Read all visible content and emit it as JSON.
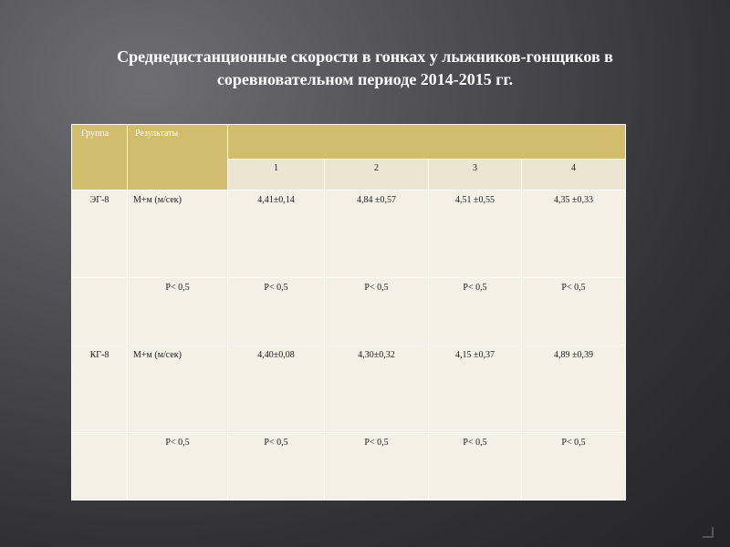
{
  "title": {
    "line1": "Среднедистанционные скорости в гонках у лыжников-гонщиков в",
    "line2": "соревновательном периоде 2014-2015 гг."
  },
  "table": {
    "header": {
      "group": "Группа",
      "results": "Результаты"
    },
    "columns": [
      "1",
      "2",
      "3",
      "4"
    ],
    "rows": [
      {
        "group": "ЭГ-8",
        "label": "М+м (м/сек)",
        "values": [
          "4,41±0,14",
          "4,84 ±0,57",
          "4,51 ±0,55",
          "4,35 ±0,33"
        ]
      },
      {
        "group": "",
        "label": "P< 0,5",
        "values": [
          "P< 0,5",
          "P< 0,5",
          "P< 0,5",
          "P< 0,5"
        ]
      },
      {
        "group": "КГ-8",
        "label": "М+м (м/сек)",
        "values": [
          "4,40±0,08",
          "4,30±0,32",
          "4,15 ±0,37",
          "4,89 ±0,39"
        ]
      },
      {
        "group": "",
        "label": "P< 0,5",
        "values": [
          "P< 0,5",
          "P< 0,5",
          "P< 0,5",
          "P< 0,5"
        ]
      }
    ]
  },
  "colors": {
    "header_fill": "#d2bc6e",
    "subheader_fill": "#ece5d1",
    "body_fill": "#f4f0e6",
    "title_text": "#ffffff"
  }
}
